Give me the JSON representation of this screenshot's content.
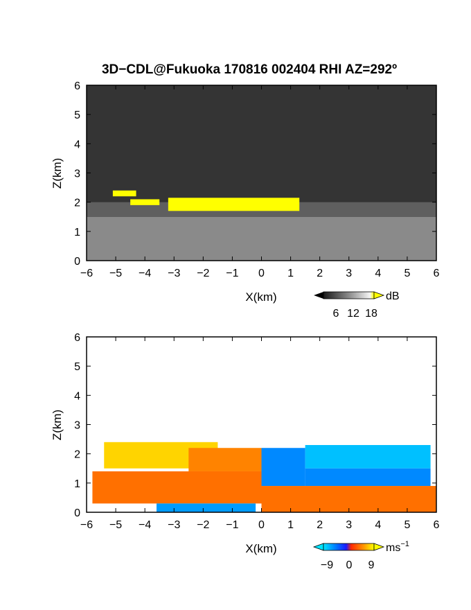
{
  "title": "3D−CDL@Fukuoka 170816 002404 RHI AZ=292º",
  "chart_data": [
    {
      "type": "heatmap",
      "name": "snr",
      "xlabel": "X(km)",
      "ylabel": "Z(km)",
      "xlim": [
        -6,
        6
      ],
      "ylim": [
        0,
        6
      ],
      "xticks": [
        "−6",
        "−5",
        "−4",
        "−3",
        "−2",
        "−1",
        "0",
        "1",
        "2",
        "3",
        "4",
        "5",
        "6"
      ],
      "yticks": [
        "0",
        "1",
        "2",
        "3",
        "4",
        "5",
        "6"
      ],
      "colorbar": {
        "unit": "dB",
        "ticks": [
          "6",
          "12",
          "18"
        ],
        "range": [
          0,
          20
        ]
      },
      "layers": [
        {
          "zmin": 0.0,
          "zmax": 6.0,
          "value": 2
        },
        {
          "zmin": 0.0,
          "zmax": 1.5,
          "value": 10
        },
        {
          "zmin": 1.5,
          "zmax": 2.0,
          "value": 6
        }
      ],
      "features": [
        {
          "xmin": -3.2,
          "xmax": 1.3,
          "zmin": 1.7,
          "zmax": 2.15,
          "value": 20
        },
        {
          "xmin": -5.1,
          "xmax": -4.3,
          "zmin": 2.2,
          "zmax": 2.4,
          "value": 20
        },
        {
          "xmin": -4.5,
          "xmax": -3.5,
          "zmin": 1.9,
          "zmax": 2.1,
          "value": 20
        }
      ]
    },
    {
      "type": "heatmap",
      "name": "doppler",
      "xlabel": "X(km)",
      "ylabel": "Z(km)",
      "xlim": [
        -6,
        6
      ],
      "ylim": [
        0,
        6
      ],
      "xticks": [
        "−6",
        "−5",
        "−4",
        "−3",
        "−2",
        "−1",
        "0",
        "1",
        "2",
        "3",
        "4",
        "5",
        "6"
      ],
      "yticks": [
        "0",
        "1",
        "2",
        "3",
        "4",
        "5",
        "6"
      ],
      "colorbar": {
        "unit": "ms",
        "unit_sup": "−1",
        "ticks": [
          "−9",
          "0",
          "9"
        ],
        "range": [
          -12,
          12
        ]
      },
      "regions": [
        {
          "xmin": -5.4,
          "xmax": -1.5,
          "zmin": 1.5,
          "zmax": 2.4,
          "value": 10
        },
        {
          "xmin": -2.5,
          "xmax": 0.0,
          "zmin": 1.4,
          "zmax": 2.2,
          "value": 6
        },
        {
          "xmin": -5.8,
          "xmax": 0.0,
          "zmin": 0.3,
          "zmax": 1.4,
          "value": 5
        },
        {
          "xmin": -3.6,
          "xmax": -0.2,
          "zmin": 0.0,
          "zmax": 0.3,
          "value": -8
        },
        {
          "xmin": 0.0,
          "xmax": 1.5,
          "zmin": 0.9,
          "zmax": 2.2,
          "value": -7
        },
        {
          "xmin": 1.5,
          "xmax": 5.8,
          "zmin": 1.5,
          "zmax": 2.3,
          "value": -10
        },
        {
          "xmin": 1.5,
          "xmax": 5.8,
          "zmin": 0.9,
          "zmax": 1.5,
          "value": -7
        },
        {
          "xmin": 0.0,
          "xmax": 6.0,
          "zmin": 0.0,
          "zmax": 0.9,
          "value": 5
        }
      ]
    }
  ]
}
